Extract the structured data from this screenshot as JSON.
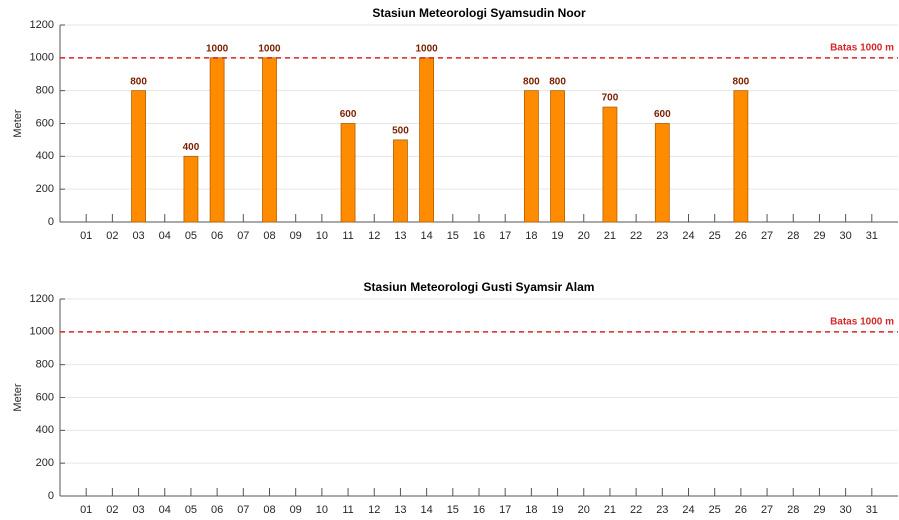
{
  "chart_data": [
    {
      "type": "bar",
      "title": "Stasiun Meteorologi Syamsudin Noor",
      "ylabel": "Meter",
      "categories": [
        "01",
        "02",
        "03",
        "04",
        "05",
        "06",
        "07",
        "08",
        "09",
        "10",
        "11",
        "12",
        "13",
        "14",
        "15",
        "16",
        "17",
        "18",
        "19",
        "20",
        "21",
        "22",
        "23",
        "24",
        "25",
        "26",
        "27",
        "28",
        "29",
        "30",
        "31"
      ],
      "values": [
        null,
        null,
        800,
        null,
        400,
        1000,
        null,
        1000,
        null,
        null,
        600,
        null,
        500,
        1000,
        null,
        null,
        null,
        800,
        800,
        null,
        700,
        null,
        600,
        null,
        null,
        800,
        null,
        null,
        null,
        null,
        null
      ],
      "color": "#ff8c00",
      "ylim": [
        0,
        1200
      ],
      "yticks": [
        0,
        200,
        400,
        600,
        800,
        1000,
        1200
      ],
      "grid": true,
      "threshold": {
        "value": 1000,
        "label": "Batas 1000 m",
        "color": "#d62728"
      }
    },
    {
      "type": "bar",
      "title": "Stasiun Meteorologi Gusti Syamsir Alam",
      "ylabel": "Meter",
      "categories": [
        "01",
        "02",
        "03",
        "04",
        "05",
        "06",
        "07",
        "08",
        "09",
        "10",
        "11",
        "12",
        "13",
        "14",
        "15",
        "16",
        "17",
        "18",
        "19",
        "20",
        "21",
        "22",
        "23",
        "24",
        "25",
        "26",
        "27",
        "28",
        "29",
        "30",
        "31"
      ],
      "values": [
        null,
        null,
        null,
        null,
        null,
        null,
        null,
        null,
        null,
        null,
        null,
        null,
        null,
        null,
        null,
        null,
        null,
        null,
        null,
        null,
        null,
        null,
        null,
        null,
        null,
        null,
        null,
        null,
        null,
        null,
        null
      ],
      "color": "#ff8c00",
      "ylim": [
        0,
        1200
      ],
      "yticks": [
        0,
        200,
        400,
        600,
        800,
        1000,
        1200
      ],
      "grid": true,
      "threshold": {
        "value": 1000,
        "label": "Batas 1000 m",
        "color": "#d62728"
      }
    }
  ]
}
